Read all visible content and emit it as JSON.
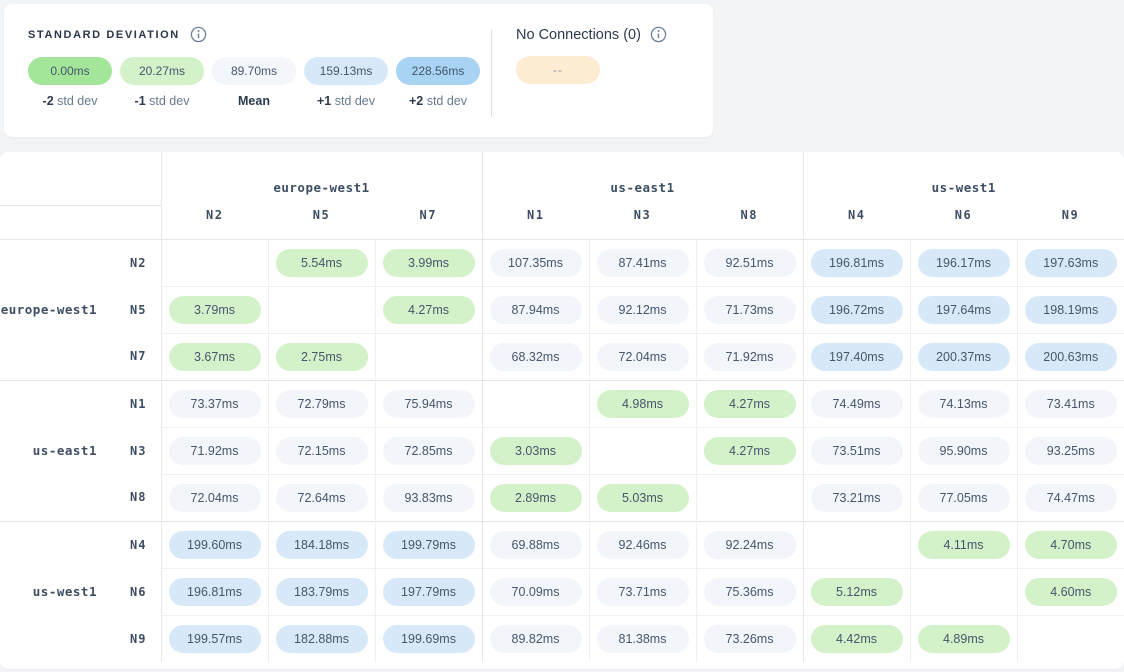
{
  "colors": {
    "low": "#d3f2ca",
    "mid": "#f2f5f9",
    "high": "#d7e9f8",
    "no_connection": "#fcecd2"
  },
  "legend": {
    "title": "STANDARD DEVIATION",
    "items": [
      {
        "value": "0.00ms",
        "label_bold": "-2",
        "label_rest": "std dev",
        "color": "#a3e69a"
      },
      {
        "value": "20.27ms",
        "label_bold": "-1",
        "label_rest": "std dev",
        "color": "#d3f2ca"
      },
      {
        "value": "89.70ms",
        "label_bold": "Mean",
        "label_rest": "",
        "color": "#f3f6fa"
      },
      {
        "value": "159.13ms",
        "label_bold": "+1",
        "label_rest": "std dev",
        "color": "#d7e9f8"
      },
      {
        "value": "228.56ms",
        "label_bold": "+2",
        "label_rest": "std dev",
        "color": "#a8d3f3"
      }
    ],
    "no_connections": {
      "label": "No Connections (0)",
      "pill_value": "--"
    }
  },
  "matrix": {
    "col_groups": [
      {
        "region": "europe-west1",
        "nodes": [
          "N2",
          "N5",
          "N7"
        ]
      },
      {
        "region": "us-east1",
        "nodes": [
          "N1",
          "N3",
          "N8"
        ]
      },
      {
        "region": "us-west1",
        "nodes": [
          "N4",
          "N6",
          "N9"
        ]
      }
    ],
    "row_groups": [
      {
        "region": "europe-west1",
        "rows": [
          {
            "node": "N2",
            "cells": [
              null,
              {
                "v": "5.54ms",
                "t": "low"
              },
              {
                "v": "3.99ms",
                "t": "low"
              },
              {
                "v": "107.35ms",
                "t": "mid"
              },
              {
                "v": "87.41ms",
                "t": "mid"
              },
              {
                "v": "92.51ms",
                "t": "mid"
              },
              {
                "v": "196.81ms",
                "t": "high"
              },
              {
                "v": "196.17ms",
                "t": "high"
              },
              {
                "v": "197.63ms",
                "t": "high"
              }
            ]
          },
          {
            "node": "N5",
            "cells": [
              {
                "v": "3.79ms",
                "t": "low"
              },
              null,
              {
                "v": "4.27ms",
                "t": "low"
              },
              {
                "v": "87.94ms",
                "t": "mid"
              },
              {
                "v": "92.12ms",
                "t": "mid"
              },
              {
                "v": "71.73ms",
                "t": "mid"
              },
              {
                "v": "196.72ms",
                "t": "high"
              },
              {
                "v": "197.64ms",
                "t": "high"
              },
              {
                "v": "198.19ms",
                "t": "high"
              }
            ]
          },
          {
            "node": "N7",
            "cells": [
              {
                "v": "3.67ms",
                "t": "low"
              },
              {
                "v": "2.75ms",
                "t": "low"
              },
              null,
              {
                "v": "68.32ms",
                "t": "mid"
              },
              {
                "v": "72.04ms",
                "t": "mid"
              },
              {
                "v": "71.92ms",
                "t": "mid"
              },
              {
                "v": "197.40ms",
                "t": "high"
              },
              {
                "v": "200.37ms",
                "t": "high"
              },
              {
                "v": "200.63ms",
                "t": "high"
              }
            ]
          }
        ]
      },
      {
        "region": "us-east1",
        "rows": [
          {
            "node": "N1",
            "cells": [
              {
                "v": "73.37ms",
                "t": "mid"
              },
              {
                "v": "72.79ms",
                "t": "mid"
              },
              {
                "v": "75.94ms",
                "t": "mid"
              },
              null,
              {
                "v": "4.98ms",
                "t": "low"
              },
              {
                "v": "4.27ms",
                "t": "low"
              },
              {
                "v": "74.49ms",
                "t": "mid"
              },
              {
                "v": "74.13ms",
                "t": "mid"
              },
              {
                "v": "73.41ms",
                "t": "mid"
              }
            ]
          },
          {
            "node": "N3",
            "cells": [
              {
                "v": "71.92ms",
                "t": "mid"
              },
              {
                "v": "72.15ms",
                "t": "mid"
              },
              {
                "v": "72.85ms",
                "t": "mid"
              },
              {
                "v": "3.03ms",
                "t": "low"
              },
              null,
              {
                "v": "4.27ms",
                "t": "low"
              },
              {
                "v": "73.51ms",
                "t": "mid"
              },
              {
                "v": "95.90ms",
                "t": "mid"
              },
              {
                "v": "93.25ms",
                "t": "mid"
              }
            ]
          },
          {
            "node": "N8",
            "cells": [
              {
                "v": "72.04ms",
                "t": "mid"
              },
              {
                "v": "72.64ms",
                "t": "mid"
              },
              {
                "v": "93.83ms",
                "t": "mid"
              },
              {
                "v": "2.89ms",
                "t": "low"
              },
              {
                "v": "5.03ms",
                "t": "low"
              },
              null,
              {
                "v": "73.21ms",
                "t": "mid"
              },
              {
                "v": "77.05ms",
                "t": "mid"
              },
              {
                "v": "74.47ms",
                "t": "mid"
              }
            ]
          }
        ]
      },
      {
        "region": "us-west1",
        "rows": [
          {
            "node": "N4",
            "cells": [
              {
                "v": "199.60ms",
                "t": "high"
              },
              {
                "v": "184.18ms",
                "t": "high"
              },
              {
                "v": "199.79ms",
                "t": "high"
              },
              {
                "v": "69.88ms",
                "t": "mid"
              },
              {
                "v": "92.46ms",
                "t": "mid"
              },
              {
                "v": "92.24ms",
                "t": "mid"
              },
              null,
              {
                "v": "4.11ms",
                "t": "low"
              },
              {
                "v": "4.70ms",
                "t": "low"
              }
            ]
          },
          {
            "node": "N6",
            "cells": [
              {
                "v": "196.81ms",
                "t": "high"
              },
              {
                "v": "183.79ms",
                "t": "high"
              },
              {
                "v": "197.79ms",
                "t": "high"
              },
              {
                "v": "70.09ms",
                "t": "mid"
              },
              {
                "v": "73.71ms",
                "t": "mid"
              },
              {
                "v": "75.36ms",
                "t": "mid"
              },
              {
                "v": "5.12ms",
                "t": "low"
              },
              null,
              {
                "v": "4.60ms",
                "t": "low"
              }
            ]
          },
          {
            "node": "N9",
            "cells": [
              {
                "v": "199.57ms",
                "t": "high"
              },
              {
                "v": "182.88ms",
                "t": "high"
              },
              {
                "v": "199.69ms",
                "t": "high"
              },
              {
                "v": "89.82ms",
                "t": "mid"
              },
              {
                "v": "81.38ms",
                "t": "mid"
              },
              {
                "v": "73.26ms",
                "t": "mid"
              },
              {
                "v": "4.42ms",
                "t": "low"
              },
              {
                "v": "4.89ms",
                "t": "low"
              },
              null
            ]
          }
        ]
      }
    ]
  }
}
